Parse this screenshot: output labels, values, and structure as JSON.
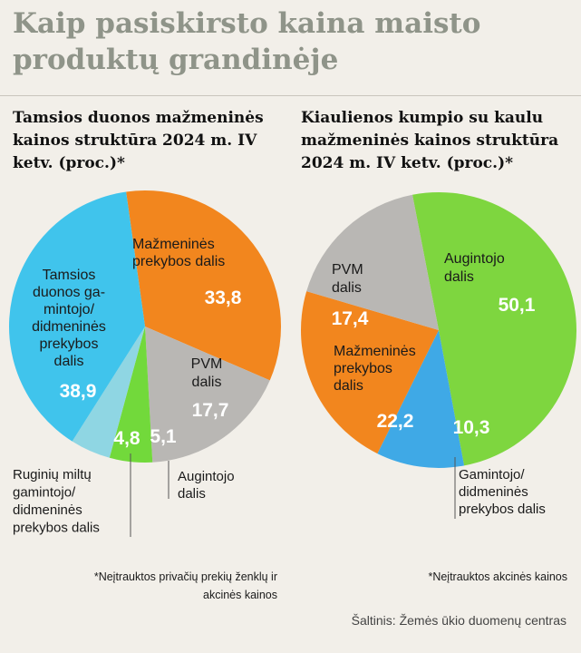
{
  "title": "Kaip pasiskirsto kaina maisto produktų grandinėje",
  "chart_data": [
    {
      "type": "pie",
      "title": "Tamsios duonos mažmeninės kainos struktūra 2024 m. IV ketv. (proc.)*",
      "slices": [
        {
          "label": "Mažmeninės prekybos dalis",
          "value": 33.8,
          "value_text": "33,8",
          "color": "#f2861e"
        },
        {
          "label": "PVM dalis",
          "value": 17.7,
          "value_text": "17,7",
          "color": "#b9b7b4"
        },
        {
          "label": "Augintojo dalis",
          "value": 5.1,
          "value_text": "5,1",
          "color": "#72d93b"
        },
        {
          "label": "Ruginių miltų gamintojo/ didmeninės prekybos dalis",
          "value": 4.8,
          "value_text": "4,8",
          "color": "#8fd6e3"
        },
        {
          "label": "Tamsios duonos gamintojo/ didmeninės prekybos dalis",
          "value": 38.9,
          "value_text": "38,9",
          "color": "#40c4ec"
        }
      ],
      "note": "*Neįtrauktos privačių prekių ženklų ir akcinės kainos"
    },
    {
      "type": "pie",
      "title": "Kiaulienos kumpio su kaulu mažmeninės kainos struktūra 2024 m. IV ketv. (proc.)*",
      "slices": [
        {
          "label": "Augintojo dalis",
          "value": 50.1,
          "value_text": "50,1",
          "color": "#7ed63f"
        },
        {
          "label": "Gamintojo/ didmeninės prekybos dalis",
          "value": 10.3,
          "value_text": "10,3",
          "color": "#3fa9e6"
        },
        {
          "label": "Mažmeninės prekybos dalis",
          "value": 22.2,
          "value_text": "22,2",
          "color": "#f2861e"
        },
        {
          "label": "PVM dalis",
          "value": 17.4,
          "value_text": "17,4",
          "color": "#b9b7b4"
        }
      ],
      "note": "*Neįtrauktos akcinės kainos"
    }
  ],
  "source": "Šaltinis: Žemės ūkio duomenų centras"
}
